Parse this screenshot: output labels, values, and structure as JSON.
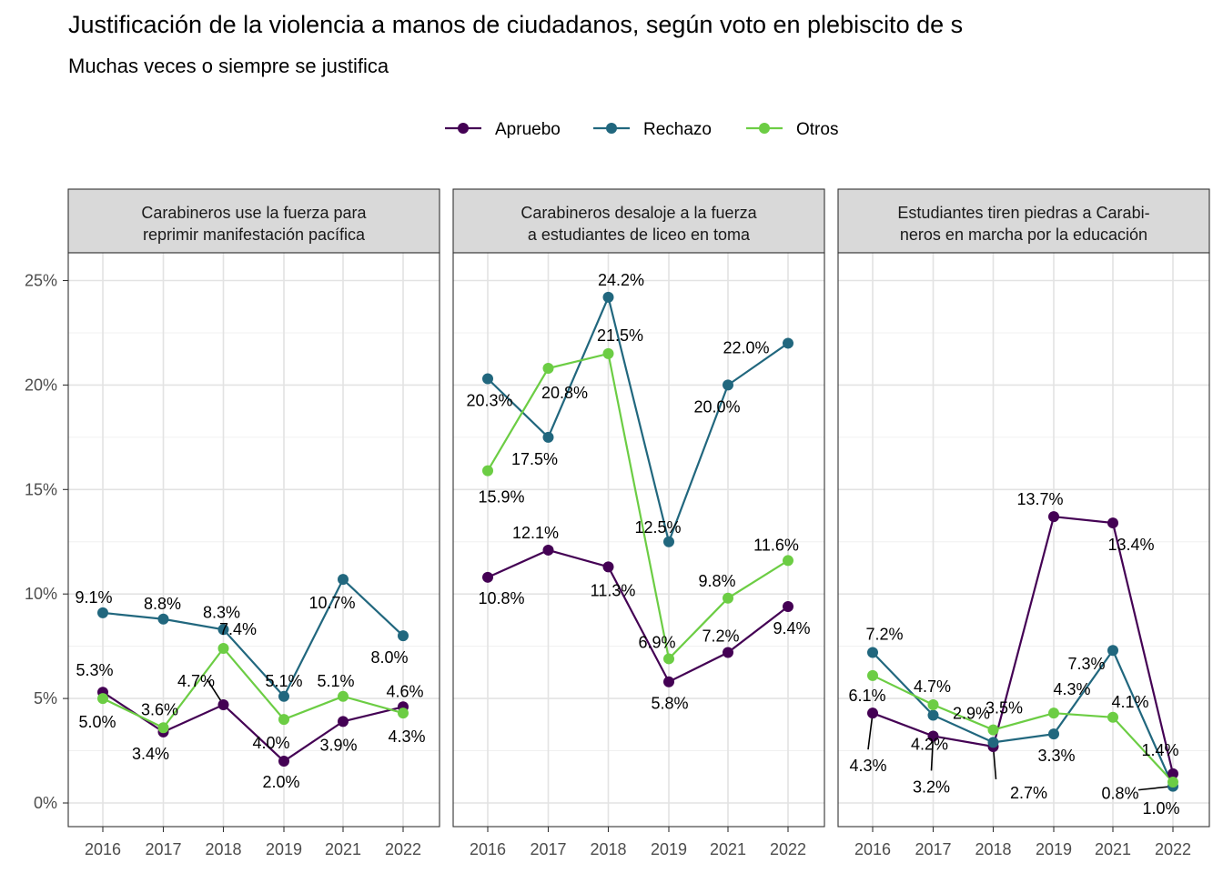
{
  "title": "Justificación de la violencia a manos de ciudadanos, según voto en plebiscito de s",
  "subtitle": "Muchas veces o siempre se justifica",
  "colors": {
    "Apruebo": "#440154",
    "Rechazo": "#21677e",
    "Otros": "#6ccd44"
  },
  "chart_data": {
    "type": "line",
    "legend_position": "top",
    "grid": true,
    "x": [
      "2016",
      "2017",
      "2018",
      "2019",
      "2021",
      "2022"
    ],
    "ylim": [
      -1,
      26
    ],
    "y_ticks": [
      "0%",
      "5%",
      "10%",
      "15%",
      "20%",
      "25%"
    ],
    "legend": [
      "Apruebo",
      "Rechazo",
      "Otros"
    ],
    "panels": [
      {
        "strip": [
          "Carabineros use la fuerza para",
          "reprimir manifestación pacífica"
        ],
        "series": [
          {
            "name": "Apruebo",
            "values": [
              5.3,
              3.4,
              4.7,
              2.0,
              3.9,
              4.6
            ],
            "labels": [
              "5.3%",
              "3.4%",
              "4.7%",
              "2.0%",
              "3.9%",
              "4.6%"
            ]
          },
          {
            "name": "Rechazo",
            "values": [
              9.1,
              8.8,
              8.3,
              5.1,
              10.7,
              8.0
            ],
            "labels": [
              "9.1%",
              "8.8%",
              "8.3%",
              "5.1%",
              "10.7%",
              "8.0%"
            ]
          },
          {
            "name": "Otros",
            "values": [
              5.0,
              3.6,
              7.4,
              4.0,
              5.1,
              4.3
            ],
            "labels": [
              "5.0%",
              "3.6%",
              "7.4%",
              "4.0%",
              "5.1%",
              "4.3%"
            ]
          }
        ]
      },
      {
        "strip": [
          "Carabineros desaloje a la fuerza",
          "a estudiantes de liceo en toma"
        ],
        "series": [
          {
            "name": "Apruebo",
            "values": [
              10.8,
              12.1,
              11.3,
              5.8,
              7.2,
              9.4
            ],
            "labels": [
              "10.8%",
              "12.1%",
              "11.3%",
              "5.8%",
              "7.2%",
              "9.4%"
            ]
          },
          {
            "name": "Rechazo",
            "values": [
              20.3,
              17.5,
              24.2,
              12.5,
              20.0,
              22.0
            ],
            "labels": [
              "20.3%",
              "17.5%",
              "24.2%",
              "12.5%",
              "20.0%",
              "22.0%"
            ]
          },
          {
            "name": "Otros",
            "values": [
              15.9,
              20.8,
              21.5,
              6.9,
              9.8,
              11.6
            ],
            "labels": [
              "15.9%",
              "20.8%",
              "21.5%",
              "6.9%",
              "9.8%",
              "11.6%"
            ]
          }
        ]
      },
      {
        "strip": [
          "Estudiantes tiren piedras a Carabi-",
          "neros en marcha por la educación"
        ],
        "series": [
          {
            "name": "Apruebo",
            "values": [
              4.3,
              3.2,
              2.7,
              13.7,
              13.4,
              1.4
            ],
            "labels": [
              "4.3%",
              "3.2%",
              "2.7%",
              "13.7%",
              "13.4%",
              "1.4%"
            ]
          },
          {
            "name": "Rechazo",
            "values": [
              7.2,
              4.2,
              2.9,
              3.3,
              7.3,
              0.8
            ],
            "labels": [
              "7.2%",
              "4.2%",
              "2.9%",
              "3.3%",
              "7.3%",
              "0.8%"
            ]
          },
          {
            "name": "Otros",
            "values": [
              6.1,
              4.7,
              3.5,
              4.3,
              4.1,
              1.0
            ],
            "labels": [
              "6.1%",
              "4.7%",
              "3.5%",
              "4.3%",
              "4.1%",
              "1.0%"
            ]
          }
        ]
      }
    ]
  }
}
